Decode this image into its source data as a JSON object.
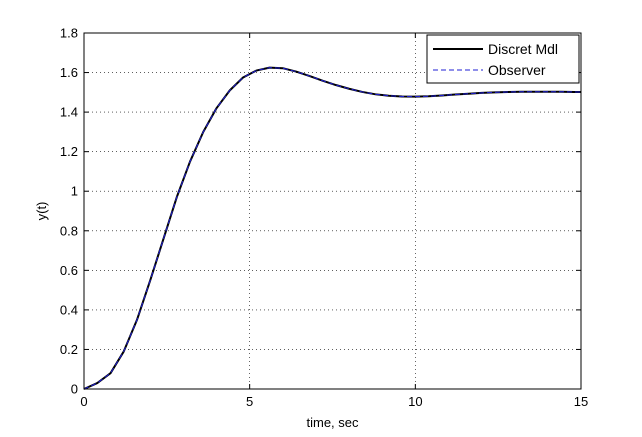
{
  "chart_data": {
    "type": "line",
    "title": "",
    "xlabel": "time, sec",
    "ylabel": "y(t)",
    "xlim": [
      0,
      15
    ],
    "ylim": [
      0,
      1.8
    ],
    "xticks": [
      0,
      5,
      10,
      15
    ],
    "xtick_labels": [
      "0",
      "5",
      "10",
      "15"
    ],
    "yticks": [
      0,
      0.2,
      0.4,
      0.6,
      0.8,
      1,
      1.2,
      1.4,
      1.6,
      1.8
    ],
    "ytick_labels": [
      "0",
      "0.2",
      "0.4",
      "0.6",
      "0.8",
      "1",
      "1.2",
      "1.4",
      "1.6",
      "1.8"
    ],
    "grid": true,
    "legend_position": "top-right",
    "series": [
      {
        "name": "Discret Mdl",
        "color": "#000000",
        "dash": "solid",
        "x": [
          0,
          0.4,
          0.8,
          1.2,
          1.6,
          2.0,
          2.4,
          2.8,
          3.2,
          3.6,
          4.0,
          4.4,
          4.8,
          5.2,
          5.6,
          6.0,
          6.4,
          6.8,
          7.2,
          7.6,
          8.0,
          8.4,
          8.8,
          9.2,
          9.6,
          10.0,
          10.4,
          10.8,
          11.2,
          11.6,
          12.0,
          12.4,
          12.8,
          13.2,
          13.6,
          14.0,
          14.4,
          14.8,
          15.0
        ],
        "values": [
          0.0,
          0.03,
          0.08,
          0.19,
          0.35,
          0.55,
          0.76,
          0.97,
          1.15,
          1.3,
          1.42,
          1.51,
          1.575,
          1.61,
          1.625,
          1.622,
          1.605,
          1.583,
          1.559,
          1.537,
          1.518,
          1.502,
          1.49,
          1.483,
          1.479,
          1.478,
          1.48,
          1.484,
          1.489,
          1.493,
          1.497,
          1.5,
          1.502,
          1.503,
          1.503,
          1.503,
          1.503,
          1.502,
          1.502
        ]
      },
      {
        "name": "Observer",
        "color": "#1f1fd6",
        "dash": "dashed",
        "x": [
          0,
          0.4,
          0.8,
          1.2,
          1.6,
          2.0,
          2.4,
          2.8,
          3.2,
          3.6,
          4.0,
          4.4,
          4.8,
          5.2,
          5.6,
          6.0,
          6.4,
          6.8,
          7.2,
          7.6,
          8.0,
          8.4,
          8.8,
          9.2,
          9.6,
          10.0,
          10.4,
          10.8,
          11.2,
          11.6,
          12.0,
          12.4,
          12.8,
          13.2,
          13.6,
          14.0,
          14.4,
          14.8,
          15.0
        ],
        "values": [
          0.0,
          0.03,
          0.08,
          0.19,
          0.35,
          0.55,
          0.76,
          0.97,
          1.15,
          1.3,
          1.42,
          1.51,
          1.575,
          1.61,
          1.625,
          1.622,
          1.605,
          1.583,
          1.559,
          1.537,
          1.518,
          1.502,
          1.49,
          1.483,
          1.479,
          1.478,
          1.48,
          1.484,
          1.489,
          1.493,
          1.497,
          1.5,
          1.502,
          1.503,
          1.503,
          1.503,
          1.503,
          1.502,
          1.502
        ]
      }
    ]
  }
}
